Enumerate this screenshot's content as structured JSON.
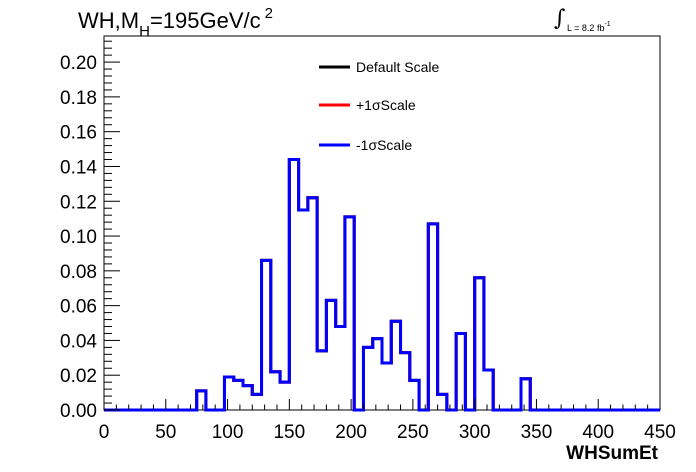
{
  "title": {
    "main": "WH,M",
    "sub": "H",
    "rest": "=195GeV/c",
    "sup": "2"
  },
  "lumi": {
    "integral": "∫",
    "text": "L = 8.2 fb",
    "sup": "-1"
  },
  "chart_data": {
    "type": "line",
    "xlabel": "WHSumEt",
    "ylabel": "",
    "xlim": [
      0,
      450
    ],
    "ylim": [
      0,
      0.215
    ],
    "x_ticks": [
      "0",
      "50",
      "100",
      "150",
      "200",
      "250",
      "300",
      "350",
      "400",
      "450"
    ],
    "y_ticks": [
      "0.00",
      "0.02",
      "0.04",
      "0.06",
      "0.08",
      "0.10",
      "0.12",
      "0.14",
      "0.16",
      "0.18",
      "0.20"
    ],
    "bin_width": 7.5,
    "series": [
      {
        "name": "Default Scale",
        "color": "#000000",
        "values": [
          0,
          0,
          0,
          0,
          0,
          0,
          0,
          0,
          0,
          0,
          0.011,
          0,
          0,
          0.019,
          0.017,
          0.014,
          0.009,
          0.086,
          0.022,
          0.016,
          0.144,
          0.115,
          0.122,
          0.034,
          0.063,
          0.048,
          0.111,
          0,
          0.036,
          0.041,
          0.027,
          0.051,
          0.033,
          0.017,
          0,
          0.107,
          0.009,
          0,
          0.044,
          0,
          0.076,
          0.023,
          0,
          0,
          0,
          0.018,
          0,
          0,
          0,
          0,
          0,
          0,
          0,
          0,
          0,
          0,
          0,
          0,
          0,
          0
        ]
      },
      {
        "name": "+1σScale",
        "color": "#ff0000",
        "values": [
          0,
          0,
          0,
          0,
          0,
          0,
          0,
          0,
          0,
          0,
          0.011,
          0,
          0,
          0.019,
          0.017,
          0.014,
          0.009,
          0.086,
          0.022,
          0.016,
          0.144,
          0.115,
          0.122,
          0.034,
          0.063,
          0.048,
          0.111,
          0,
          0.036,
          0.041,
          0.027,
          0.051,
          0.033,
          0.017,
          0,
          0.107,
          0.009,
          0,
          0.044,
          0,
          0.076,
          0.023,
          0,
          0,
          0,
          0.018,
          0,
          0,
          0,
          0,
          0,
          0,
          0,
          0,
          0,
          0,
          0,
          0,
          0,
          0
        ]
      },
      {
        "name": "-1σScale",
        "color": "#0000ff",
        "values": [
          0,
          0,
          0,
          0,
          0,
          0,
          0,
          0,
          0,
          0,
          0.011,
          0,
          0,
          0.019,
          0.017,
          0.014,
          0.009,
          0.086,
          0.022,
          0.016,
          0.144,
          0.115,
          0.122,
          0.034,
          0.063,
          0.048,
          0.111,
          0,
          0.036,
          0.041,
          0.027,
          0.051,
          0.033,
          0.017,
          0,
          0.107,
          0.009,
          0,
          0.044,
          0,
          0.076,
          0.023,
          0,
          0,
          0,
          0.018,
          0,
          0,
          0,
          0,
          0,
          0,
          0,
          0,
          0,
          0,
          0,
          0,
          0,
          0
        ]
      }
    ],
    "legend_position": "top-center",
    "grid": false
  }
}
